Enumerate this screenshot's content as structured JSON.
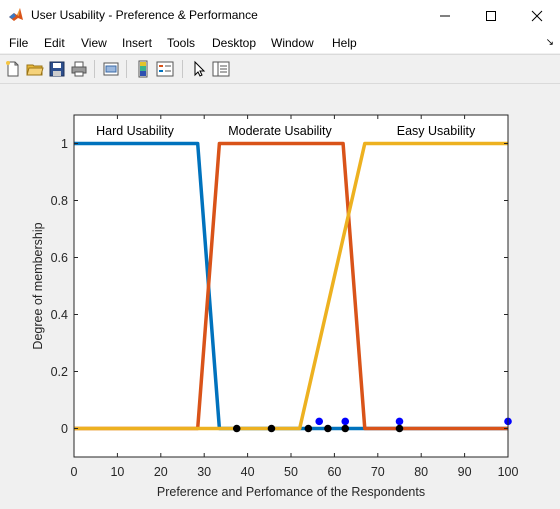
{
  "window": {
    "title": "User Usability - Preference & Performance"
  },
  "menu": {
    "items": [
      "File",
      "Edit",
      "View",
      "Insert",
      "Tools",
      "Desktop",
      "Window",
      "Help"
    ]
  },
  "toolbar": {
    "buttons": [
      "new-figure-icon",
      "open-file-icon",
      "save-icon",
      "print-icon",
      "print-preview-icon",
      "colorbar-icon",
      "legend-icon",
      "pointer-icon",
      "property-editor-icon"
    ]
  },
  "colors": {
    "hard": "#0072bd",
    "moderate": "#d95319",
    "easy": "#edb120",
    "marker_blue": "#0000ff",
    "marker_black": "#000000"
  },
  "chart_data": {
    "type": "line",
    "title": "",
    "xlabel": "Preference and Perfomance of the Respondents",
    "ylabel": "Degree of membership",
    "xlim": [
      0,
      100
    ],
    "ylim": [
      -0.1,
      1.1
    ],
    "xticks": [
      0,
      10,
      20,
      30,
      40,
      50,
      60,
      70,
      80,
      90,
      100
    ],
    "yticks": [
      0,
      0.2,
      0.4,
      0.6,
      0.8,
      1
    ],
    "ytick_labels": [
      "0",
      "0.2",
      "0.4",
      "0.6",
      "0.8",
      "1"
    ],
    "grid": false,
    "series": [
      {
        "name": "Hard Usability",
        "color": "#0072bd",
        "x": [
          0,
          28.5,
          33.5,
          100
        ],
        "y": [
          1,
          1,
          0,
          0
        ]
      },
      {
        "name": "Moderate Usability",
        "color": "#d95319",
        "x": [
          0,
          28.5,
          33.5,
          62,
          67,
          100
        ],
        "y": [
          0,
          0,
          1,
          1,
          0,
          0
        ]
      },
      {
        "name": "Easy Usability",
        "color": "#edb120",
        "x": [
          0,
          52,
          67,
          100
        ],
        "y": [
          0,
          0,
          1,
          1
        ]
      }
    ],
    "markers": [
      {
        "group": "blue",
        "color": "#0000ff",
        "x": [
          56.5,
          62.5,
          75,
          100
        ],
        "y": [
          0.025,
          0.025,
          0.025,
          0.025
        ]
      },
      {
        "group": "black",
        "color": "#000000",
        "x": [
          37.5,
          45.5,
          54,
          58.5,
          62.5,
          75
        ],
        "y": [
          0,
          0,
          0,
          0,
          0,
          0
        ]
      }
    ]
  }
}
